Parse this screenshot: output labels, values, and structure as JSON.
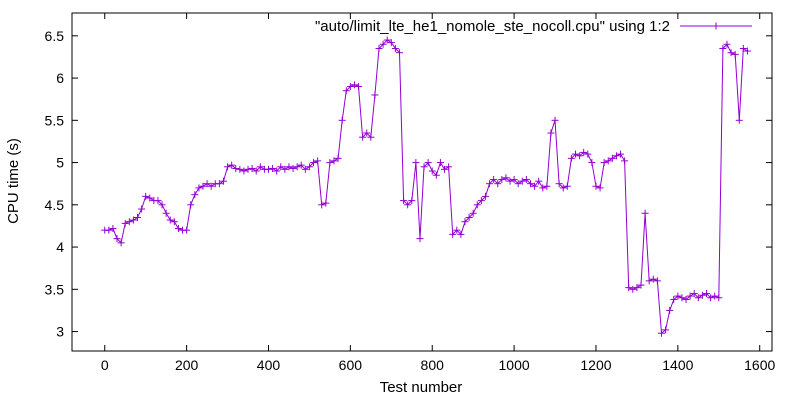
{
  "chart_data": {
    "type": "line",
    "title": "",
    "xlabel": "Test number",
    "ylabel": "CPU time (s)",
    "xlim": [
      -80,
      1630
    ],
    "ylim": [
      2.77,
      6.77
    ],
    "x_ticks": [
      0,
      200,
      400,
      600,
      800,
      1000,
      1200,
      1400,
      1600
    ],
    "y_ticks": [
      3,
      3.5,
      4,
      4.5,
      5,
      5.5,
      6,
      6.5
    ],
    "x_tick_labels": [
      "0",
      "200",
      "400",
      "600",
      "800",
      "1000",
      "1200",
      "1400",
      "1600"
    ],
    "y_tick_labels": [
      "3",
      "3.5",
      "4",
      "4.5",
      "5",
      "5.5",
      "6",
      "6.5"
    ],
    "grid": false,
    "legend_position": "top-right",
    "marker": "plus",
    "color": "#9400d3",
    "series": [
      {
        "name": "\"auto/limit_lte_he1_nomole_ste_nocoll.cpu\" using 1:2",
        "x": [
          0,
          10,
          20,
          30,
          40,
          50,
          60,
          70,
          80,
          90,
          100,
          110,
          120,
          130,
          140,
          150,
          160,
          170,
          180,
          190,
          200,
          210,
          220,
          230,
          240,
          250,
          260,
          270,
          280,
          290,
          300,
          310,
          320,
          330,
          340,
          350,
          360,
          370,
          380,
          390,
          400,
          410,
          420,
          430,
          440,
          450,
          460,
          470,
          480,
          490,
          500,
          510,
          520,
          530,
          540,
          550,
          560,
          570,
          580,
          590,
          600,
          610,
          620,
          630,
          640,
          650,
          660,
          670,
          680,
          690,
          700,
          710,
          720,
          730,
          740,
          750,
          760,
          770,
          780,
          790,
          800,
          810,
          820,
          830,
          840,
          850,
          860,
          870,
          880,
          890,
          900,
          910,
          920,
          930,
          940,
          950,
          960,
          970,
          980,
          990,
          1000,
          1010,
          1020,
          1030,
          1040,
          1050,
          1060,
          1070,
          1080,
          1090,
          1100,
          1110,
          1120,
          1130,
          1140,
          1150,
          1160,
          1170,
          1180,
          1190,
          1200,
          1210,
          1220,
          1230,
          1240,
          1250,
          1260,
          1270,
          1280,
          1290,
          1300,
          1310,
          1320,
          1330,
          1340,
          1350,
          1360,
          1370,
          1380,
          1390,
          1400,
          1410,
          1420,
          1430,
          1440,
          1450,
          1460,
          1470,
          1480,
          1490,
          1500,
          1510,
          1520,
          1530,
          1540,
          1550,
          1560,
          1570
        ],
        "y": [
          4.2,
          4.2,
          4.22,
          4.1,
          4.05,
          4.28,
          4.3,
          4.32,
          4.35,
          4.45,
          4.6,
          4.58,
          4.55,
          4.55,
          4.5,
          4.4,
          4.32,
          4.3,
          4.22,
          4.2,
          4.2,
          4.5,
          4.62,
          4.7,
          4.72,
          4.75,
          4.72,
          4.75,
          4.75,
          4.78,
          4.95,
          4.97,
          4.93,
          4.92,
          4.9,
          4.92,
          4.93,
          4.9,
          4.95,
          4.92,
          4.92,
          4.93,
          4.9,
          4.95,
          4.92,
          4.95,
          4.93,
          4.95,
          4.97,
          4.92,
          4.95,
          5.0,
          5.02,
          4.5,
          4.52,
          5.0,
          5.02,
          5.05,
          5.5,
          5.85,
          5.9,
          5.92,
          5.9,
          5.3,
          5.35,
          5.3,
          5.8,
          6.35,
          6.4,
          6.45,
          6.42,
          6.35,
          6.3,
          4.55,
          4.5,
          4.55,
          5.0,
          4.1,
          4.95,
          5.0,
          4.9,
          4.85,
          5.0,
          4.92,
          4.95,
          4.15,
          4.2,
          4.15,
          4.3,
          4.35,
          4.4,
          4.5,
          4.55,
          4.6,
          4.75,
          4.8,
          4.75,
          4.8,
          4.82,
          4.78,
          4.8,
          4.75,
          4.78,
          4.8,
          4.75,
          4.72,
          4.78,
          4.7,
          4.72,
          5.35,
          5.5,
          4.75,
          4.7,
          4.72,
          5.05,
          5.1,
          5.08,
          5.12,
          5.1,
          5.0,
          4.72,
          4.7,
          5.0,
          5.02,
          5.05,
          5.08,
          5.1,
          5.02,
          3.52,
          3.5,
          3.52,
          3.55,
          4.4,
          3.6,
          3.62,
          3.6,
          2.98,
          3.02,
          3.25,
          3.38,
          3.42,
          3.4,
          3.38,
          3.42,
          3.45,
          3.4,
          3.43,
          3.45,
          3.4,
          3.42,
          3.4,
          6.35,
          6.4,
          6.3,
          6.28,
          5.5,
          6.35,
          6.32
        ]
      }
    ]
  }
}
